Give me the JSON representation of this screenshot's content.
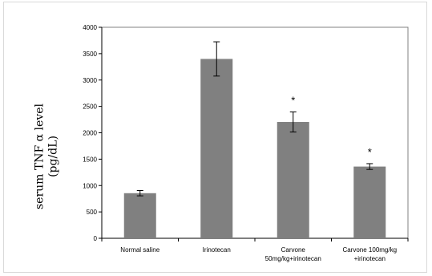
{
  "chart_data": {
    "type": "bar",
    "title": "",
    "ylabel_lines": [
      "serum TNF α level",
      "(pg/dL)"
    ],
    "xlabel": "",
    "ylim": [
      0,
      4000
    ],
    "yticks": [
      0,
      500,
      1000,
      1500,
      2000,
      2500,
      3000,
      3500,
      4000
    ],
    "grid": false,
    "categories": [
      [
        "Normal saline"
      ],
      [
        "Irinotecan"
      ],
      [
        "Carvone",
        "50mg/kg+irinotecan"
      ],
      [
        "Carvone 100mg/kg",
        "+irinotecan"
      ]
    ],
    "values": [
      855,
      3400,
      2205,
      1360
    ],
    "errors": [
      50,
      325,
      190,
      55
    ],
    "annotations": [
      "",
      "",
      "*",
      "*"
    ],
    "bar_color": "#808080",
    "axis_color": "#808080"
  }
}
